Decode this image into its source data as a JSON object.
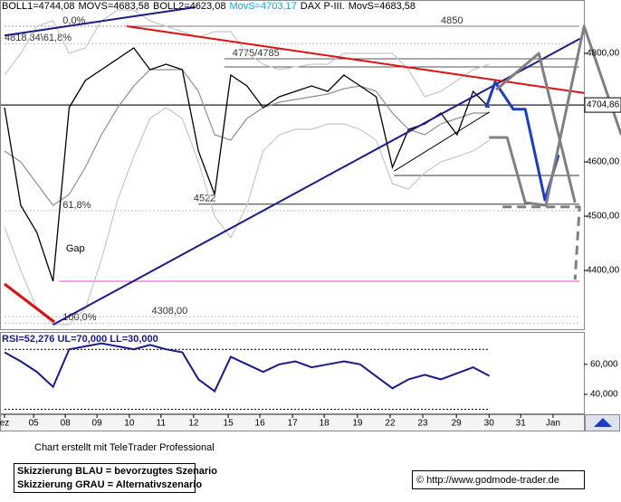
{
  "chart_data": {
    "type": "line",
    "header": [
      {
        "text": "BOLL1=4744,08",
        "color": "#000000"
      },
      {
        "text": "MOVS=4683,58",
        "color": "#000000"
      },
      {
        "text": "BOLL2=4623,08",
        "color": "#000000"
      },
      {
        "text": "MovS=4703,17",
        "color": "#00b0e0"
      },
      {
        "text": "DAX P-III.",
        "color": "#000000"
      },
      {
        "text": "MovS=4683,58",
        "color": "#000000"
      }
    ],
    "xlim": [
      0,
      19.1
    ],
    "xticks": [
      {
        "value": 0,
        "label": "ez"
      },
      {
        "value": 0.9,
        "label": "05"
      },
      {
        "value": 1.88,
        "label": "08"
      },
      {
        "value": 2.86,
        "label": "09"
      },
      {
        "value": 3.86,
        "label": "10"
      },
      {
        "value": 4.84,
        "label": "11"
      },
      {
        "value": 5.85,
        "label": "12"
      },
      {
        "value": 6.92,
        "label": "15"
      },
      {
        "value": 7.9,
        "label": "16"
      },
      {
        "value": 8.91,
        "label": "17"
      },
      {
        "value": 9.89,
        "label": "18"
      },
      {
        "value": 10.92,
        "label": "19"
      },
      {
        "value": 11.93,
        "label": "22"
      },
      {
        "value": 12.94,
        "label": "23"
      },
      {
        "value": 13.98,
        "label": "29"
      },
      {
        "value": 14.99,
        "label": "30"
      },
      {
        "value": 15.97,
        "label": "31"
      },
      {
        "value": 16.97,
        "label": "Jan"
      }
    ],
    "ylim": [
      4290,
      4885
    ],
    "yticks": [
      {
        "value": 4400,
        "label": "4400,00"
      },
      {
        "value": 4500,
        "label": "4500,00"
      },
      {
        "value": 4600,
        "label": "4600,00"
      },
      {
        "value": 4800,
        "label": "4800,00"
      }
    ],
    "last_price": {
      "value": 4704.86,
      "label": "4704,86"
    },
    "x": [
      0,
      0.5,
      1,
      1.5,
      2,
      2.5,
      3,
      3.5,
      4,
      4.5,
      5,
      5.5,
      6,
      6.5,
      7,
      7.5,
      8,
      8.5,
      9,
      9.5,
      10,
      10.5,
      11,
      11.5,
      12,
      12.5,
      13,
      13.5,
      14,
      14.5,
      15
    ],
    "series": [
      {
        "color": "#c8c8c8",
        "values": [
          4760,
          4800,
          4850,
          4860,
          4800,
          4810,
          4860,
          4880,
          4880,
          4860,
          4850,
          4840,
          4830,
          4840,
          4840,
          4800,
          4780,
          4770,
          4775,
          4780,
          4780,
          4800,
          4800,
          4800,
          4800,
          4770,
          4720,
          4730,
          4750,
          4770,
          4780
        ]
      },
      {
        "color": "#c8c8c8",
        "values": [
          4480,
          4400,
          4330,
          4300,
          4300,
          4330,
          4420,
          4530,
          4610,
          4680,
          4700,
          4680,
          4600,
          4500,
          4460,
          4520,
          4620,
          4650,
          4660,
          4660,
          4670,
          4670,
          4660,
          4640,
          4560,
          4550,
          4580,
          4600,
          4610,
          4620,
          4640
        ]
      },
      {
        "color": "#909090",
        "values": [
          4620,
          4600,
          4560,
          4520,
          4540,
          4590,
          4650,
          4700,
          4740,
          4770,
          4770,
          4770,
          4730,
          4650,
          4640,
          4680,
          4700,
          4710,
          4715,
          4720,
          4725,
          4735,
          4740,
          4730,
          4690,
          4660,
          4650,
          4670,
          4680,
          4690,
          4690
        ]
      },
      {
        "color": "#000000",
        "values": [
          4700,
          4520,
          4470,
          4380,
          4700,
          4750,
          4770,
          4790,
          4810,
          4770,
          4780,
          4770,
          4620,
          4540,
          4760,
          4740,
          4700,
          4720,
          4730,
          4740,
          4730,
          4760,
          4740,
          4720,
          4590,
          4660,
          4670,
          4690,
          4650,
          4730,
          4700
        ]
      }
    ],
    "levels": [
      {
        "value": 4850,
        "from": 0,
        "color": "#999999",
        "dash": true,
        "label": "0,0%",
        "label_at": 1.8
      },
      {
        "value": 4850,
        "from": 3.8,
        "color": "#777777",
        "label": "4850",
        "label_at": 13.5
      },
      {
        "value": 4818,
        "from": 0,
        "color": "#bbbbbb",
        "dash": true,
        "label": "4818,34\\61,8%",
        "label_at": 0
      },
      {
        "value": 4790,
        "from": 6.8,
        "color": "#555555",
        "label": "4775/4785",
        "label_at": 7.05
      },
      {
        "value": 4775,
        "from": 6.8,
        "color": "#555555"
      },
      {
        "value": 4575,
        "from": 12.05,
        "color": "#333333"
      },
      {
        "value": 4522,
        "from": 6.0,
        "color": "#333333",
        "label": "4522",
        "label_at": 5.85
      },
      {
        "value": 4510,
        "from": 0,
        "color": "#bbbbbb",
        "dash": true,
        "label": "61,8%",
        "label_at": 1.8
      },
      {
        "value": 4380,
        "from": 1.7,
        "color": "#e040e0"
      },
      {
        "value": 4315,
        "from": 0,
        "color": "#bbbbbb",
        "dash": true,
        "label": "4308,00",
        "label_at": 4.55
      },
      {
        "value": 4303,
        "from": 0,
        "color": "#bbbbbb",
        "dash": true,
        "label": "100,0%",
        "label_at": 1.8
      }
    ],
    "annotations": [
      {
        "text": "Gap",
        "x": 1.9,
        "y": 4440
      }
    ],
    "trendlines": [
      {
        "color": "#1a1a8c",
        "width": 2,
        "x": [
          1.5,
          17.8
        ],
        "values": [
          4300,
          4827
        ]
      },
      {
        "color": "#1a1a8c",
        "width": 2,
        "x": [
          0,
          5.9
        ],
        "values": [
          4833,
          4885
        ]
      },
      {
        "color": "#dd1111",
        "width": 2,
        "x": [
          3.78,
          17.93
        ],
        "values": [
          4850,
          4727
        ]
      },
      {
        "color": "#dd1111",
        "width": 3,
        "x": [
          0,
          1.54
        ],
        "values": [
          4375,
          4305
        ]
      },
      {
        "color": "#000000",
        "width": 1,
        "x": [
          12.05,
          15
        ],
        "values": [
          4583,
          4692
        ]
      }
    ],
    "scenarios": [
      {
        "color": "#1a3ccc",
        "width": 3,
        "x": [
          14.9,
          15.18,
          15.74,
          16.11,
          16.72,
          17.14
        ],
        "values": [
          4700,
          4747,
          4697,
          4697,
          4530,
          4613
        ]
      },
      {
        "color": "#808080",
        "width": 3,
        "x": [
          14.99,
          15.55,
          16.11,
          16.75,
          17.93,
          19.08
        ],
        "values": [
          4645,
          4645,
          4525,
          4520,
          4850,
          4650
        ]
      },
      {
        "color": "#808080",
        "width": 3,
        "x": [
          15.21,
          16.53,
          17.65
        ],
        "values": [
          4733,
          4800,
          4525
        ]
      },
      {
        "color": "#808080",
        "width": 3,
        "dash": true,
        "x": [
          15.41,
          17.79,
          17.65
        ],
        "values": [
          4517,
          4517,
          4383
        ]
      }
    ],
    "rsi": {
      "header": "RSI=52,276 UL=70,000 LL=30,000",
      "ylim": [
        28.5,
        81
      ],
      "yticks": [
        {
          "value": 40,
          "label": "40,000"
        },
        {
          "value": 60,
          "label": "60,000"
        }
      ],
      "bands": [
        70,
        30
      ],
      "color": "#1a1a8c",
      "values": [
        68,
        62,
        55,
        45,
        70,
        72,
        74,
        72,
        70,
        73,
        70,
        68,
        50,
        42,
        65,
        60,
        55,
        60,
        62,
        58,
        60,
        62,
        60,
        52,
        44,
        50,
        53,
        50,
        54,
        58,
        52.3
      ]
    },
    "credit": "Chart erstellt mit TeleTrader Professional",
    "legend_lines": [
      "Skizzierung BLAU = bevorzugtes Szenario",
      "Skizzierung GRAU = Alternativszenario"
    ],
    "source": "© http://www.godmode-trader.de"
  }
}
